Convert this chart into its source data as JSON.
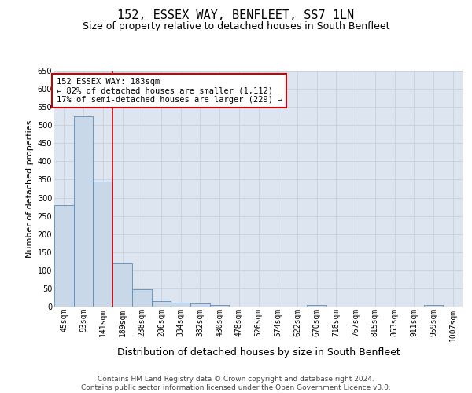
{
  "title": "152, ESSEX WAY, BENFLEET, SS7 1LN",
  "subtitle": "Size of property relative to detached houses in South Benfleet",
  "xlabel": "Distribution of detached houses by size in South Benfleet",
  "ylabel": "Number of detached properties",
  "categories": [
    "45sqm",
    "93sqm",
    "141sqm",
    "189sqm",
    "238sqm",
    "286sqm",
    "334sqm",
    "382sqm",
    "430sqm",
    "478sqm",
    "526sqm",
    "574sqm",
    "622sqm",
    "670sqm",
    "718sqm",
    "767sqm",
    "815sqm",
    "863sqm",
    "911sqm",
    "959sqm",
    "1007sqm"
  ],
  "values": [
    280,
    525,
    345,
    120,
    48,
    15,
    10,
    8,
    5,
    0,
    0,
    0,
    0,
    5,
    0,
    0,
    0,
    0,
    0,
    5,
    0
  ],
  "bar_color": "#c8d8e8",
  "bar_edge_color": "#5b8db8",
  "grid_color": "#c8d0dc",
  "background_color": "#dde6f0",
  "red_line_index": 3,
  "red_line_color": "#cc0000",
  "annotation_text": "152 ESSEX WAY: 183sqm\n← 82% of detached houses are smaller (1,112)\n17% of semi-detached houses are larger (229) →",
  "annotation_box_color": "white",
  "annotation_box_edge_color": "#cc0000",
  "ylim": [
    0,
    650
  ],
  "yticks": [
    0,
    50,
    100,
    150,
    200,
    250,
    300,
    350,
    400,
    450,
    500,
    550,
    600,
    650
  ],
  "footer": "Contains HM Land Registry data © Crown copyright and database right 2024.\nContains public sector information licensed under the Open Government Licence v3.0.",
  "title_fontsize": 11,
  "subtitle_fontsize": 9,
  "xlabel_fontsize": 9,
  "ylabel_fontsize": 8,
  "tick_fontsize": 7,
  "annotation_fontsize": 7.5,
  "footer_fontsize": 6.5
}
